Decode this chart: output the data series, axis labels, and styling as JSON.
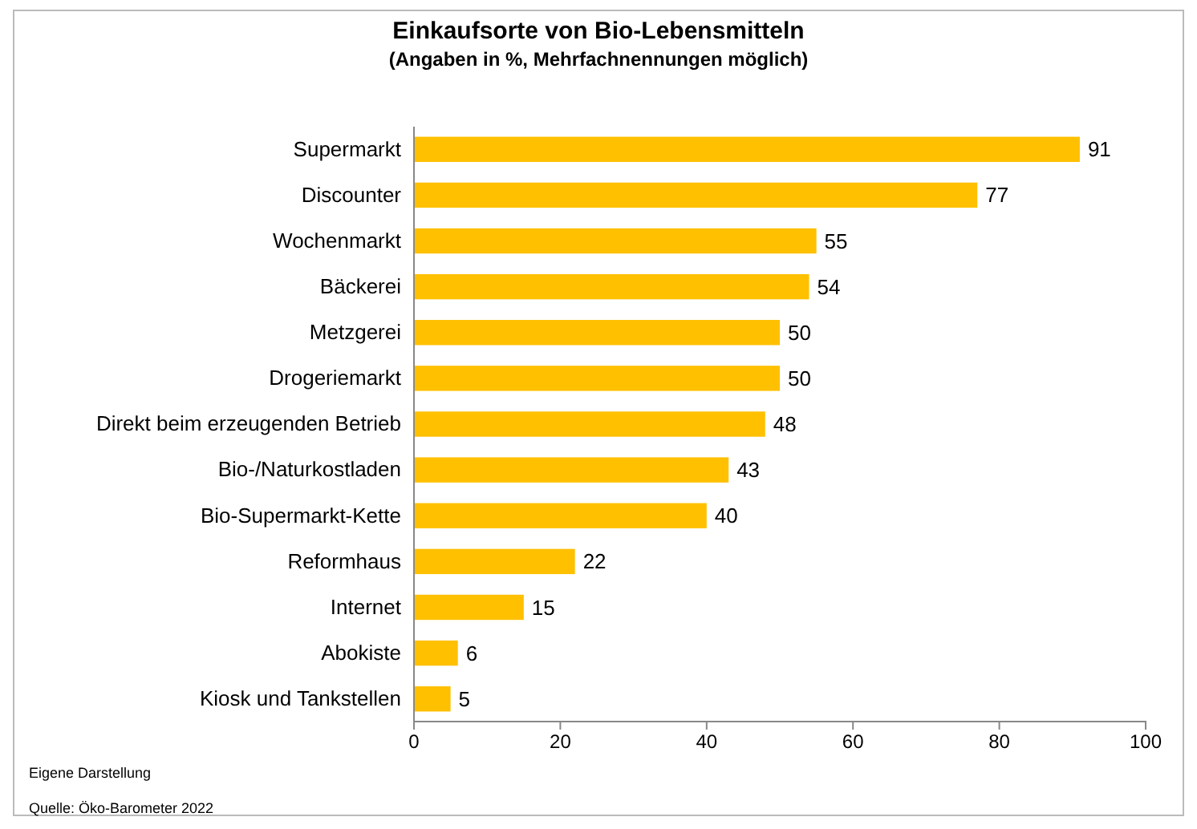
{
  "chart_data": {
    "type": "bar",
    "orientation": "horizontal",
    "title": "Einkaufsorte von Bio-Lebensmitteln",
    "subtitle": "(Angaben in %, Mehrfachnennungen möglich)",
    "categories": [
      "Supermarkt",
      "Discounter",
      "Wochenmarkt",
      "Bäckerei",
      "Metzgerei",
      "Drogeriemarkt",
      "Direkt beim erzeugenden Betrieb",
      "Bio-/Naturkostladen",
      "Bio-Supermarkt-Kette",
      "Reformhaus",
      "Internet",
      "Abokiste",
      "Kiosk und Tankstellen"
    ],
    "values": [
      91,
      77,
      55,
      54,
      50,
      50,
      48,
      43,
      40,
      22,
      15,
      6,
      5
    ],
    "color": "#ffc000",
    "xlim": [
      0,
      100
    ],
    "xticks": [
      0,
      20,
      40,
      60,
      80,
      100
    ],
    "data_labels": true,
    "grid": false,
    "annotations": [
      "Eigene Darstellung",
      "Quelle: Öko-Barometer 2022"
    ]
  }
}
